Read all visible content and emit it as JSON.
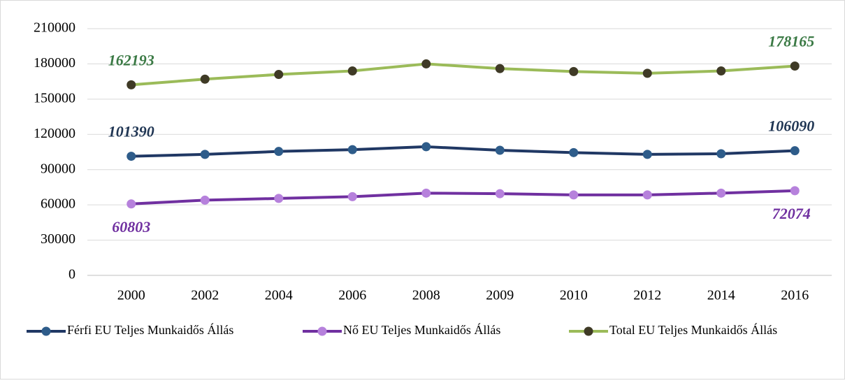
{
  "chart_data": {
    "type": "line",
    "categories": [
      "2000",
      "2002",
      "2004",
      "2006",
      "2008",
      "2009",
      "2010",
      "2012",
      "2014",
      "2016"
    ],
    "series": [
      {
        "name": "Férfi EU Teljes Munkaidős Állás",
        "color": "#203864",
        "marker_color": "#2e5c8a",
        "label_color": "#1f3553",
        "values": [
          101390,
          103000,
          105500,
          107000,
          109500,
          106500,
          104500,
          103000,
          103500,
          106090
        ]
      },
      {
        "name": "Nő EU Teljes Munkaidős Állás",
        "color": "#7030a0",
        "marker_color": "#b681dc",
        "label_color": "#7030a0",
        "values": [
          60803,
          64000,
          65500,
          67000,
          70000,
          69500,
          68500,
          68500,
          70000,
          72074
        ]
      },
      {
        "name": "Total EU Teljes Munkaidős Állás",
        "color": "#9bbb59",
        "marker_color": "#3f3a26",
        "label_color": "#3b7a45",
        "values": [
          162193,
          167000,
          171000,
          174000,
          180000,
          176000,
          173500,
          172000,
          174000,
          178165
        ]
      }
    ],
    "ylim": [
      0,
      210000
    ],
    "yticks": [
      0,
      30000,
      60000,
      90000,
      120000,
      150000,
      180000,
      210000
    ],
    "grid": true
  }
}
